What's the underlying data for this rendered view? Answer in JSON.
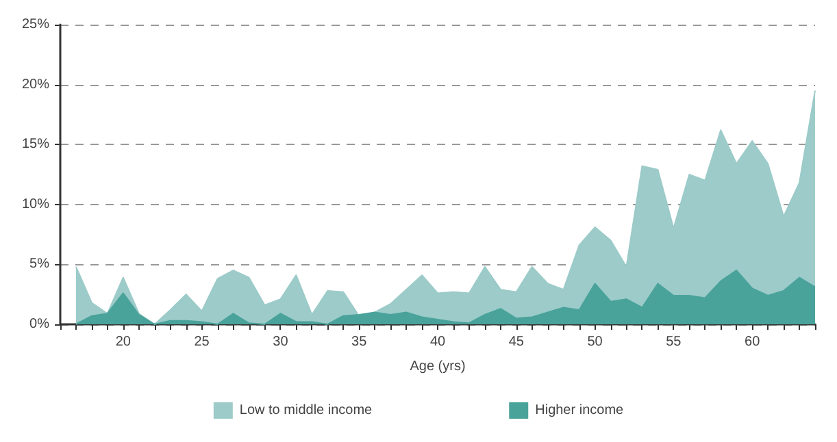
{
  "chart_data": {
    "type": "area",
    "xlabel": "Age (yrs)",
    "x": [
      17,
      18,
      19,
      20,
      21,
      22,
      23,
      24,
      25,
      26,
      27,
      28,
      29,
      30,
      31,
      32,
      33,
      34,
      35,
      36,
      37,
      38,
      39,
      40,
      41,
      42,
      43,
      44,
      45,
      46,
      47,
      48,
      49,
      50,
      51,
      52,
      53,
      54,
      55,
      56,
      57,
      58,
      59,
      60,
      61,
      62,
      63,
      64
    ],
    "series": [
      {
        "name": "Low to middle income",
        "color": "#9ccbc9",
        "values": [
          4.8,
          1.8,
          0.9,
          3.9,
          0.9,
          0,
          1.2,
          2.5,
          1.1,
          3.8,
          4.5,
          3.9,
          1.6,
          2.1,
          4.1,
          0.8,
          2.8,
          2.7,
          0.7,
          1.0,
          1.7,
          2.9,
          4.1,
          2.6,
          2.7,
          2.6,
          4.8,
          2.9,
          2.7,
          4.8,
          3.4,
          2.9,
          6.6,
          8.1,
          7.0,
          4.8,
          13.2,
          12.9,
          8.0,
          12.5,
          12.0,
          16.2,
          13.4,
          15.3,
          13.4,
          9.0,
          11.8,
          19.5
        ]
      },
      {
        "name": "Higher income",
        "color": "#4aa39b",
        "values": [
          0,
          0.7,
          0.9,
          2.6,
          0.8,
          0,
          0.3,
          0.3,
          0.2,
          0,
          0.9,
          0.1,
          0,
          0.9,
          0.2,
          0.2,
          0,
          0.7,
          0.8,
          1.0,
          0.8,
          1.0,
          0.6,
          0.4,
          0.2,
          0.1,
          0.8,
          1.3,
          0.5,
          0.6,
          1.0,
          1.4,
          1.2,
          3.4,
          1.9,
          2.1,
          1.4,
          3.4,
          2.4,
          2.4,
          2.2,
          3.6,
          4.5,
          3.0,
          2.4,
          2.8,
          3.9,
          3.1
        ]
      }
    ],
    "xlim": [
      16,
      64
    ],
    "xticks": [
      {
        "value": 16,
        "label": null
      },
      {
        "value": 17,
        "label": null
      },
      {
        "value": 18,
        "label": null
      },
      {
        "value": 19,
        "label": null
      },
      20,
      {
        "value": 21,
        "label": null
      },
      {
        "value": 22,
        "label": null
      },
      {
        "value": 23,
        "label": null
      },
      {
        "value": 24,
        "label": null
      },
      25,
      {
        "value": 26,
        "label": null
      },
      {
        "value": 27,
        "label": null
      },
      {
        "value": 28,
        "label": null
      },
      {
        "value": 29,
        "label": null
      },
      30,
      {
        "value": 31,
        "label": null
      },
      {
        "value": 32,
        "label": null
      },
      {
        "value": 33,
        "label": null
      },
      {
        "value": 34,
        "label": null
      },
      35,
      {
        "value": 36,
        "label": null
      },
      {
        "value": 37,
        "label": null
      },
      {
        "value": 38,
        "label": null
      },
      {
        "value": 39,
        "label": null
      },
      40,
      {
        "value": 41,
        "label": null
      },
      {
        "value": 42,
        "label": null
      },
      {
        "value": 43,
        "label": null
      },
      {
        "value": 44,
        "label": null
      },
      45,
      {
        "value": 46,
        "label": null
      },
      {
        "value": 47,
        "label": null
      },
      {
        "value": 48,
        "label": null
      },
      {
        "value": 49,
        "label": null
      },
      50,
      {
        "value": 51,
        "label": null
      },
      {
        "value": 52,
        "label": null
      },
      {
        "value": 53,
        "label": null
      },
      {
        "value": 54,
        "label": null
      },
      55,
      {
        "value": 56,
        "label": null
      },
      {
        "value": 57,
        "label": null
      },
      {
        "value": 58,
        "label": null
      },
      {
        "value": 59,
        "label": null
      },
      60,
      {
        "value": 61,
        "label": null
      },
      {
        "value": 62,
        "label": null
      },
      {
        "value": 63,
        "label": null
      },
      {
        "value": 64,
        "label": null
      }
    ],
    "ylim": [
      0,
      25
    ],
    "yticks": [
      {
        "value": 0,
        "label": "0%"
      },
      {
        "value": 5,
        "label": "5%"
      },
      {
        "value": 10,
        "label": "10%"
      },
      {
        "value": 15,
        "label": "15%"
      },
      {
        "value": 20,
        "label": "20%"
      },
      {
        "value": 25,
        "label": "25%"
      }
    ],
    "grid": "y",
    "legend": "bottom",
    "marker": "none"
  }
}
